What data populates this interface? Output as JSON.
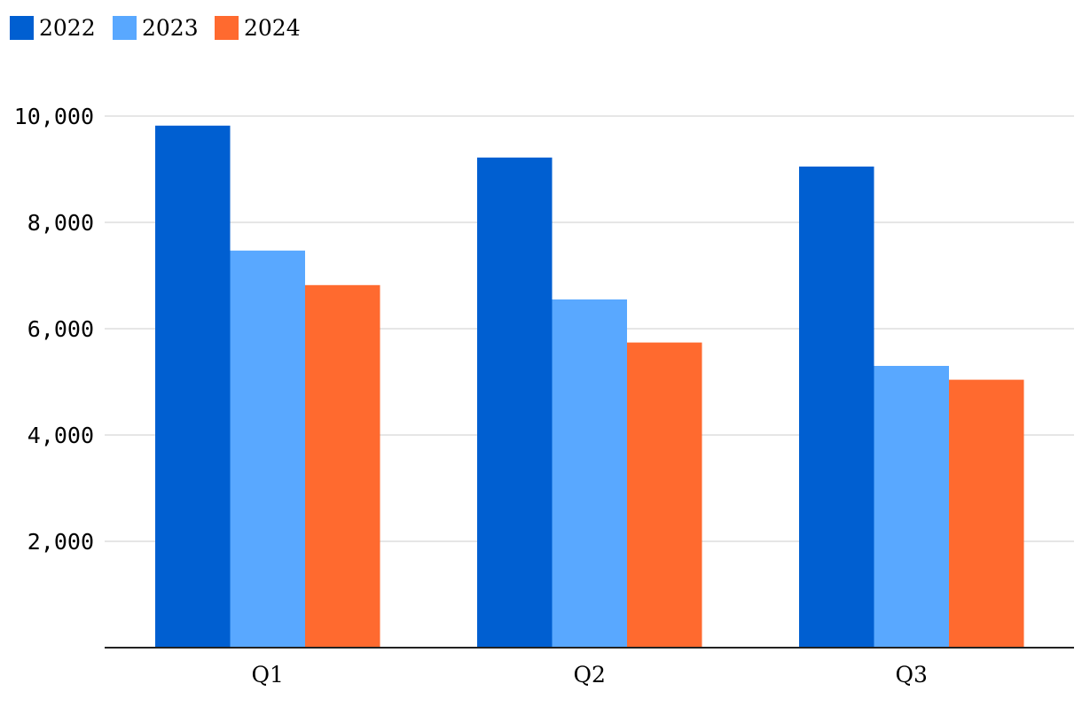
{
  "chart_data": {
    "type": "bar",
    "title": "",
    "xlabel": "",
    "ylabel": "",
    "categories": [
      "Q1",
      "Q2",
      "Q3"
    ],
    "series": [
      {
        "name": "2022",
        "color": "#005fd1",
        "values": [
          9820,
          9220,
          9050
        ]
      },
      {
        "name": "2023",
        "color": "#59a8ff",
        "values": [
          7470,
          6550,
          5300
        ]
      },
      {
        "name": "2024",
        "color": "#ff6a2f",
        "values": [
          6820,
          5740,
          5040
        ]
      }
    ],
    "ylim": [
      0,
      10000
    ],
    "yticks": [
      {
        "value": 2000,
        "label": "2,000"
      },
      {
        "value": 4000,
        "label": "4,000"
      },
      {
        "value": 6000,
        "label": "6,000"
      },
      {
        "value": 8000,
        "label": "8,000"
      },
      {
        "value": 10000,
        "label": "10,000"
      }
    ],
    "grid": true,
    "legend_position": "top-left"
  }
}
